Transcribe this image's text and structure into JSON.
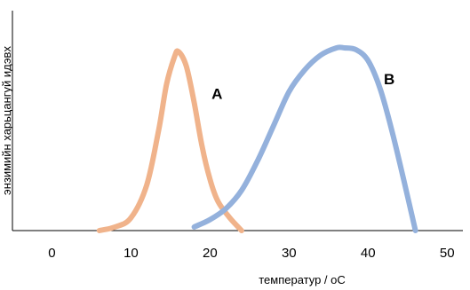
{
  "chart_data": {
    "type": "line",
    "xlabel": "температур / oC",
    "ylabel": "энзимийн харьцангуй идэвх",
    "xlim": [
      -5,
      52
    ],
    "ylim": [
      0,
      1
    ],
    "x_ticks": [
      0,
      10,
      20,
      30,
      40,
      50
    ],
    "grid": false,
    "legend": "none",
    "series": [
      {
        "name": "A",
        "color": "#f0b38b",
        "points": [
          [
            6,
            0.0
          ],
          [
            8,
            0.02
          ],
          [
            10,
            0.07
          ],
          [
            12,
            0.25
          ],
          [
            13.5,
            0.55
          ],
          [
            14.5,
            0.8
          ],
          [
            15.5,
            0.95
          ],
          [
            16,
            0.98
          ],
          [
            17,
            0.9
          ],
          [
            18,
            0.7
          ],
          [
            19,
            0.46
          ],
          [
            20,
            0.28
          ],
          [
            21,
            0.16
          ],
          [
            22.5,
            0.07
          ],
          [
            24,
            0.0
          ]
        ]
      },
      {
        "name": "B",
        "color": "#94b1dc",
        "points": [
          [
            18,
            0.02
          ],
          [
            20,
            0.06
          ],
          [
            22,
            0.12
          ],
          [
            24,
            0.22
          ],
          [
            26,
            0.38
          ],
          [
            28,
            0.57
          ],
          [
            30,
            0.76
          ],
          [
            32,
            0.88
          ],
          [
            34,
            0.96
          ],
          [
            36,
            1.0
          ],
          [
            37,
            1.0
          ],
          [
            38.5,
            0.99
          ],
          [
            40,
            0.93
          ],
          [
            41.5,
            0.78
          ],
          [
            43,
            0.55
          ],
          [
            44.5,
            0.28
          ],
          [
            46,
            0.0
          ]
        ]
      }
    ]
  }
}
